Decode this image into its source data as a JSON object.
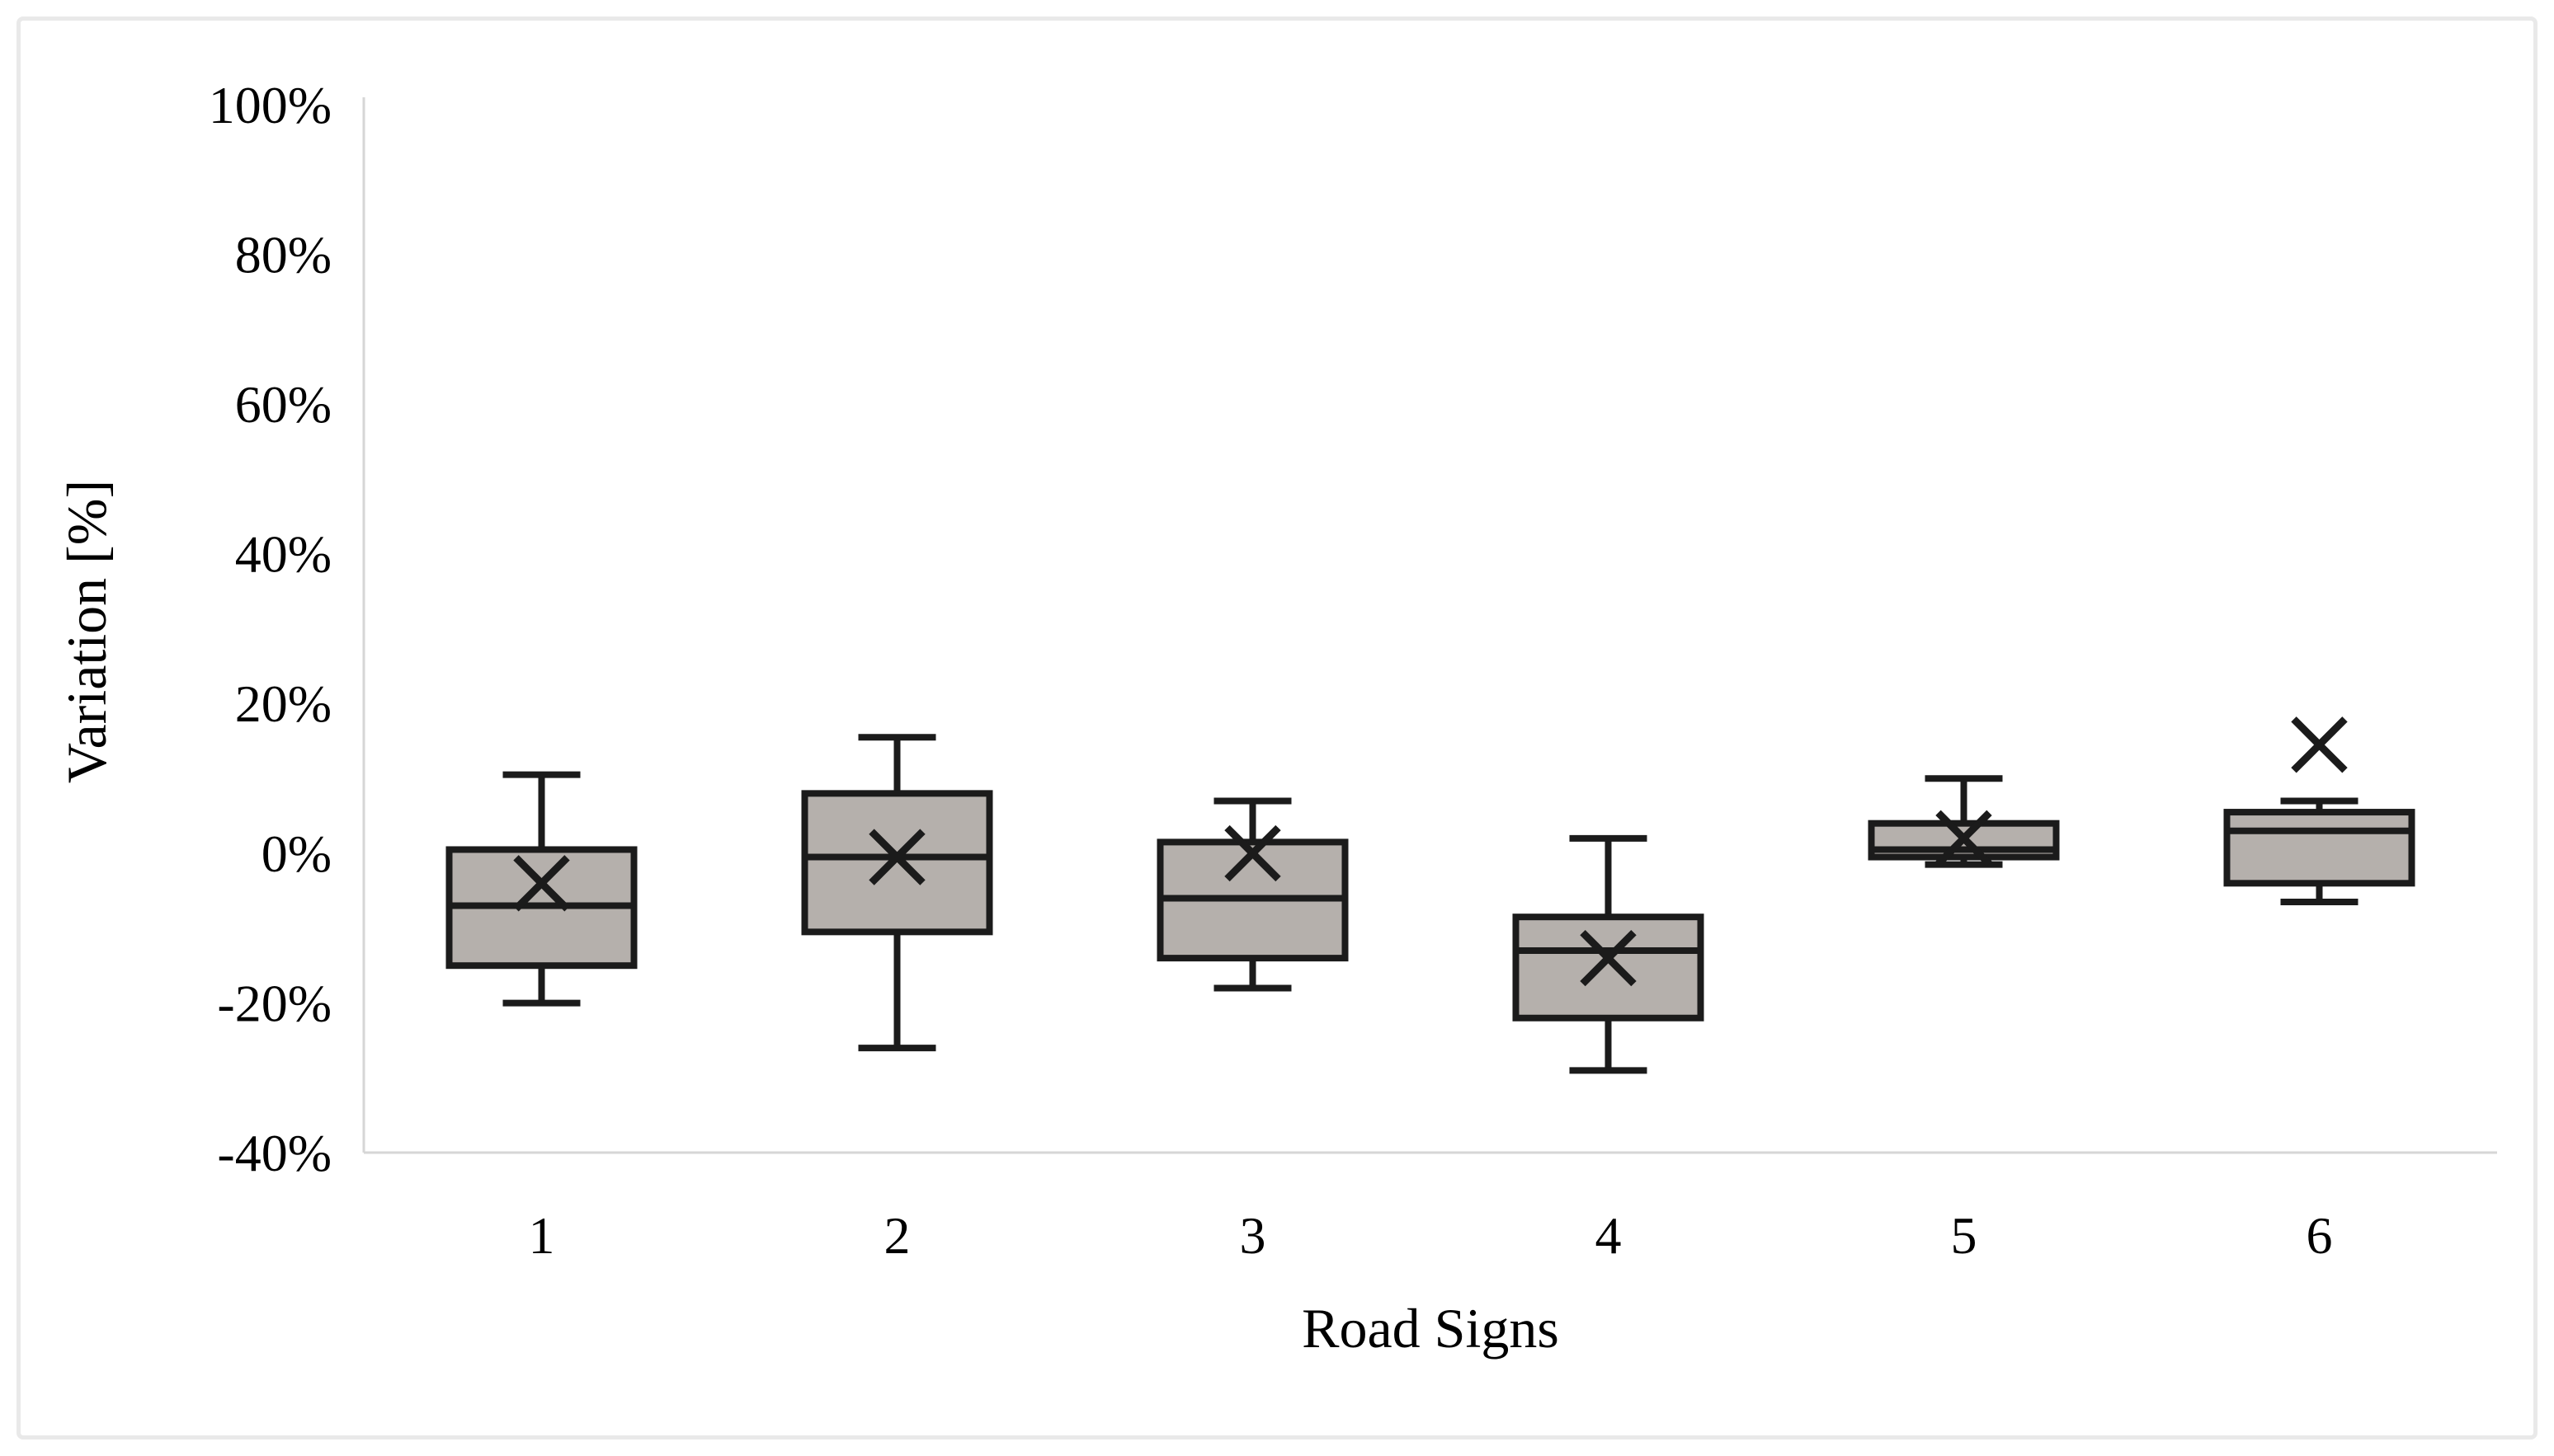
{
  "figure": {
    "y_axis": {
      "title": "Variation [%]",
      "tick_labels": [
        "100%",
        "80%",
        "60%",
        "40%",
        "20%",
        "0%",
        "-20%",
        "-40%"
      ],
      "tick_values": [
        100,
        80,
        60,
        40,
        20,
        0,
        -20,
        -40
      ],
      "min": -40,
      "max": 100
    },
    "x_axis": {
      "title": "Road Signs",
      "categories": [
        "1",
        "2",
        "3",
        "4",
        "5",
        "6"
      ]
    },
    "colors": {
      "box_fill": "#b5b0ac",
      "box_stroke": "#1b1b1b",
      "axis_line": "#d6d6d6",
      "text": "#000000",
      "frame_border": "#e9e9e9",
      "background": "#ffffff"
    }
  },
  "chart_data": {
    "type": "boxplot",
    "title": "",
    "xlabel": "Road Signs",
    "ylabel": "Variation [%]",
    "ylim": [
      -40,
      100
    ],
    "y_tick_step": 20,
    "grid": false,
    "legend": false,
    "mean_marker": "x",
    "categories": [
      "1",
      "2",
      "3",
      "4",
      "5",
      "6"
    ],
    "series": [
      {
        "category": "1",
        "whisker_low": -20,
        "q1": -15,
        "median": -7,
        "q3": 0.5,
        "whisker_high": 10.5,
        "mean": -4
      },
      {
        "category": "2",
        "whisker_low": -26,
        "q1": -10.5,
        "median": -0.5,
        "q3": 8,
        "whisker_high": 15.5,
        "mean": -0.5
      },
      {
        "category": "3",
        "whisker_low": -18,
        "q1": -14,
        "median": -6,
        "q3": 1.5,
        "whisker_high": 7,
        "mean": 0
      },
      {
        "category": "4",
        "whisker_low": -29,
        "q1": -22,
        "median": -13,
        "q3": -8.5,
        "whisker_high": 2,
        "mean": -14
      },
      {
        "category": "5",
        "whisker_low": -1.5,
        "q1": -0.5,
        "median": 0.5,
        "q3": 4,
        "whisker_high": 10,
        "mean": 2
      },
      {
        "category": "6",
        "whisker_low": -6.5,
        "q1": -4,
        "median": 3,
        "q3": 5.5,
        "whisker_high": 7,
        "mean": 14.5
      }
    ]
  }
}
